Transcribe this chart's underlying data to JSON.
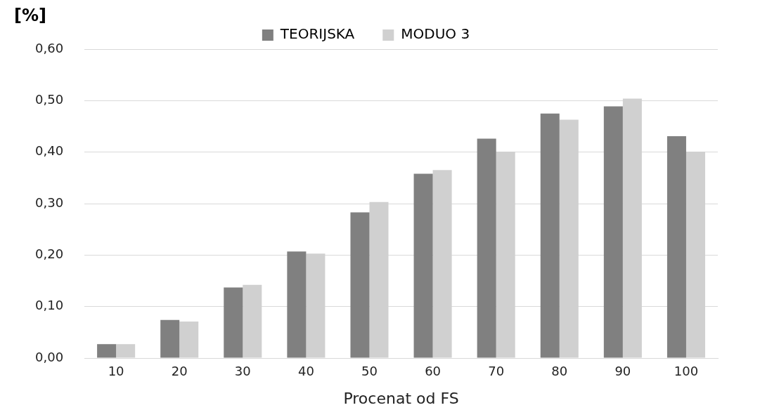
{
  "chart_data": {
    "type": "bar",
    "xlabel": "Procenat od FS",
    "ylabel": "[%]",
    "categories": [
      "10",
      "20",
      "30",
      "40",
      "50",
      "60",
      "70",
      "80",
      "90",
      "100"
    ],
    "series": [
      {
        "name": "TEORIJSKA",
        "color": "#808080",
        "values": [
          0.027,
          0.074,
          0.137,
          0.207,
          0.283,
          0.358,
          0.426,
          0.475,
          0.489,
          0.431
        ]
      },
      {
        "name": "MODUO 3",
        "color": "#d0d0d0",
        "values": [
          0.027,
          0.071,
          0.142,
          0.203,
          0.303,
          0.365,
          0.401,
          0.463,
          0.504,
          0.401
        ]
      }
    ],
    "ylim": [
      0,
      0.6
    ],
    "yticks": [
      {
        "value": 0,
        "label": "0,00"
      },
      {
        "value": 0.1,
        "label": "0,10"
      },
      {
        "value": 0.2,
        "label": "0,20"
      },
      {
        "value": 0.3,
        "label": "0,30"
      },
      {
        "value": 0.4,
        "label": "0,40"
      },
      {
        "value": 0.5,
        "label": "0,50"
      },
      {
        "value": 0.6,
        "label": "0,60"
      }
    ],
    "grid": "y",
    "legend": "top"
  }
}
